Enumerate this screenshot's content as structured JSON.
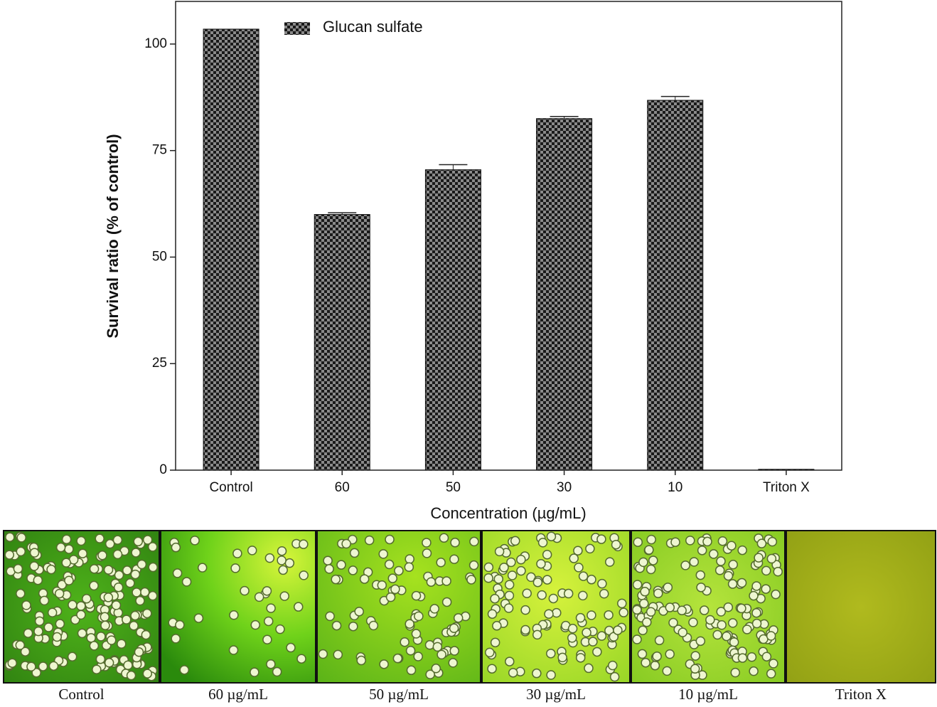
{
  "chart_data": {
    "type": "bar",
    "y_label": "Survival ratio (% of control)",
    "x_label": "Concentration (µg/mL)",
    "categories": [
      "Control",
      "60",
      "50",
      "30",
      "10",
      "Triton X"
    ],
    "series": [
      {
        "name": "Glucan sulfate",
        "color": "#1a1a1a",
        "values": [
          103.5,
          60,
          70.5,
          82.5,
          86.8,
          0.2
        ],
        "errors": [
          null,
          0.4,
          1.2,
          0.5,
          0.9,
          null
        ]
      }
    ],
    "ylim": [
      0,
      110
    ],
    "yticks": [
      0,
      25,
      50,
      75,
      100
    ],
    "legend": "top-left"
  },
  "micrographs": {
    "labels": [
      "Control",
      "60 µg/mL",
      "50 µg/mL",
      "30 µg/mL",
      "10 µg/mL",
      "Triton X"
    ]
  }
}
